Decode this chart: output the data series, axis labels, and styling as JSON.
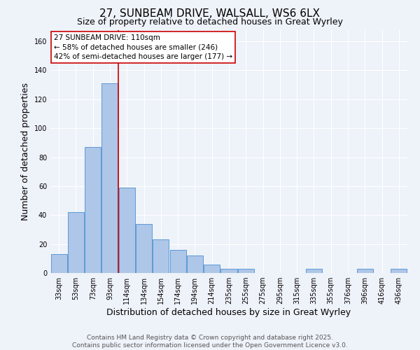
{
  "title": "27, SUNBEAM DRIVE, WALSALL, WS6 6LX",
  "subtitle": "Size of property relative to detached houses in Great Wyrley",
  "xlabel": "Distribution of detached houses by size in Great Wyrley",
  "ylabel": "Number of detached properties",
  "bar_labels": [
    "33sqm",
    "53sqm",
    "73sqm",
    "93sqm",
    "114sqm",
    "134sqm",
    "154sqm",
    "174sqm",
    "194sqm",
    "214sqm",
    "235sqm",
    "255sqm",
    "275sqm",
    "295sqm",
    "315sqm",
    "335sqm",
    "355sqm",
    "376sqm",
    "396sqm",
    "416sqm",
    "436sqm"
  ],
  "bar_values": [
    13,
    42,
    87,
    131,
    59,
    34,
    23,
    16,
    12,
    6,
    3,
    3,
    0,
    0,
    0,
    3,
    0,
    0,
    3,
    0,
    3
  ],
  "bar_color": "#aec6e8",
  "bar_edge_color": "#5b9bd5",
  "vline_index": 4,
  "vline_color": "#cc0000",
  "annotation_text": "27 SUNBEAM DRIVE: 110sqm\n← 58% of detached houses are smaller (246)\n42% of semi-detached houses are larger (177) →",
  "annotation_box_facecolor": "#ffffff",
  "annotation_box_edgecolor": "#cc0000",
  "ylim": [
    0,
    168
  ],
  "yticks": [
    0,
    20,
    40,
    60,
    80,
    100,
    120,
    140,
    160
  ],
  "footer_text": "Contains HM Land Registry data © Crown copyright and database right 2025.\nContains public sector information licensed under the Open Government Licence v3.0.",
  "background_color": "#eef2f9",
  "grid_color": "#ffffff",
  "title_fontsize": 11,
  "subtitle_fontsize": 9,
  "axis_label_fontsize": 9,
  "tick_fontsize": 7,
  "annotation_fontsize": 7.5,
  "footer_fontsize": 6.5
}
